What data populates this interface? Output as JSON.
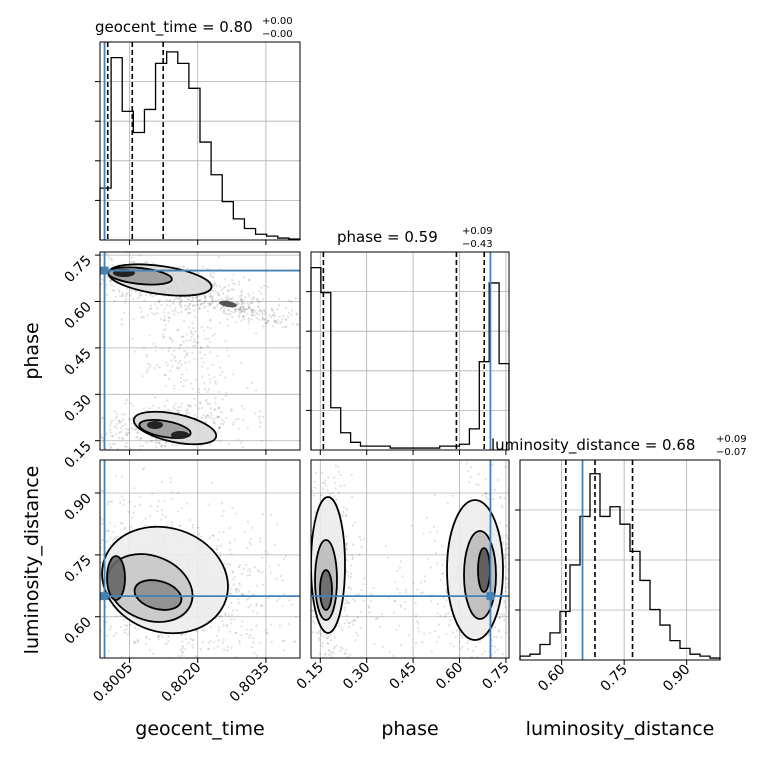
{
  "chart_data": {
    "type": "corner",
    "parameters": [
      "geocent_time",
      "phase",
      "luminosity_distance"
    ],
    "truths": {
      "geocent_time": 0.79995,
      "phase": 0.7,
      "luminosity_distance": 0.65
    },
    "titles": [
      {
        "param": "geocent_time",
        "text": "geocent_time = 0.80",
        "plus": "+0.00",
        "minus": "−0.00"
      },
      {
        "param": "phase",
        "text": "phase = 0.59",
        "plus": "+0.09",
        "minus": "−0.43"
      },
      {
        "param": "luminosity_distance",
        "text": "luminosity_distance = 0.68",
        "plus": "+0.09",
        "minus": "−0.07"
      }
    ],
    "axis_labels": {
      "x": [
        "geocent_time",
        "phase",
        "luminosity_distance"
      ],
      "y": [
        "phase",
        "luminosity_distance"
      ]
    },
    "ticks": {
      "geocent_time": [
        "0.8005",
        "0.8020",
        "0.8035"
      ],
      "phase": [
        "0.15",
        "0.30",
        "0.45",
        "0.60",
        "0.75"
      ],
      "luminosity_distance": [
        "0.60",
        "0.75",
        "0.90"
      ]
    },
    "ranges": {
      "geocent_time": [
        0.79985,
        0.80425
      ],
      "phase": [
        0.12,
        0.76
      ],
      "luminosity_distance": [
        0.5,
        0.98
      ]
    },
    "quantile_lines": {
      "geocent_time": [
        0.80002,
        0.80056,
        0.80124
      ],
      "phase": [
        0.16,
        0.59,
        0.68
      ],
      "luminosity_distance": [
        0.61,
        0.68,
        0.77
      ]
    },
    "hist_geocent_time": [
      0.27,
      0.95,
      0.67,
      0.56,
      0.68,
      0.92,
      0.98,
      0.92,
      0.79,
      0.51,
      0.34,
      0.2,
      0.11,
      0.06,
      0.03,
      0.02,
      0.01,
      0.005
    ],
    "hist_phase": [
      0.95,
      0.82,
      0.22,
      0.09,
      0.04,
      0.02,
      0.02,
      0.02,
      0.01,
      0.01,
      0.01,
      0.01,
      0.01,
      0.02,
      0.02,
      0.03,
      0.11,
      0.46,
      0.87,
      0.45
    ],
    "hist_luminosity_distance": [
      0.02,
      0.03,
      0.08,
      0.14,
      0.25,
      0.49,
      0.74,
      0.96,
      0.74,
      0.79,
      0.7,
      0.56,
      0.41,
      0.26,
      0.18,
      0.1,
      0.06,
      0.03,
      0.02,
      0.01
    ]
  }
}
